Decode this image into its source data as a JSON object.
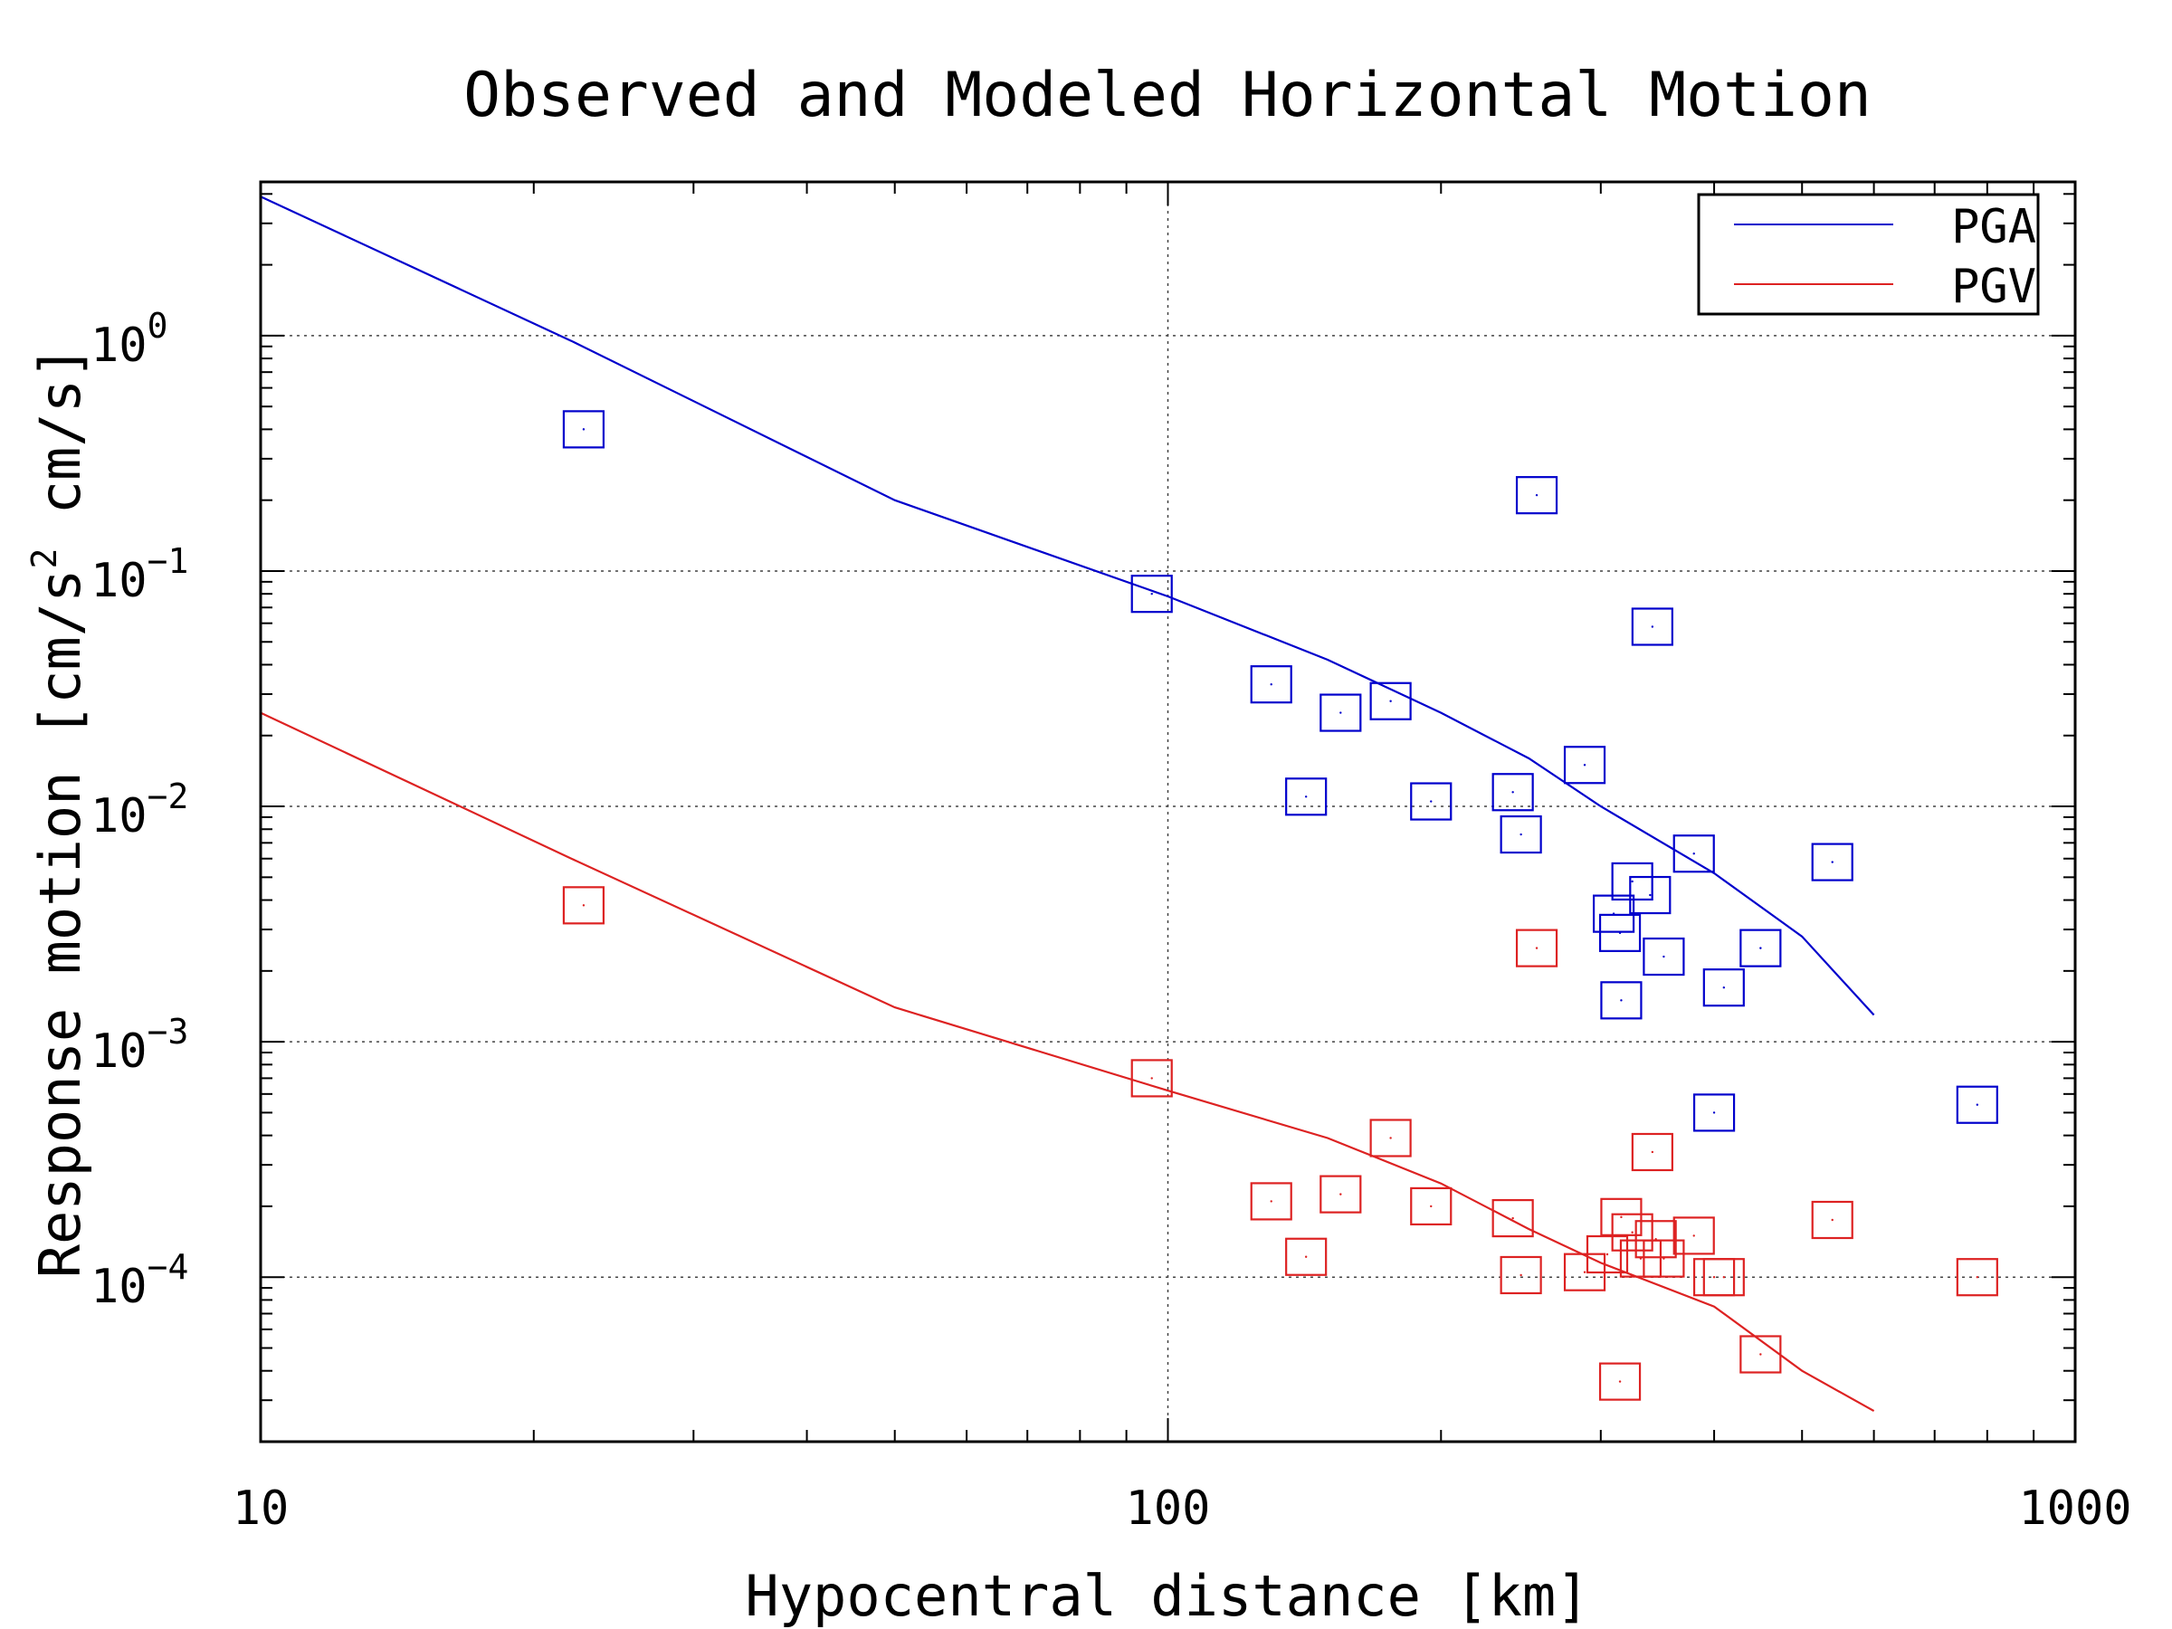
{
  "chart_data": {
    "type": "scatter",
    "title": "Observed and Modeled Horizontal Motion",
    "xlabel": "Hypocentral distance [km]",
    "ylabel": "Response motion [cm/s",
    "ylabel_sup": "2",
    "ylabel_tail": " cm/s]",
    "x_scale": "log",
    "y_scale": "log",
    "xlim": [
      10,
      1000
    ],
    "ylim": [
      2e-05,
      4.5
    ],
    "x_ticks": [
      {
        "value": 10,
        "label": "10"
      },
      {
        "value": 100,
        "label": "100"
      },
      {
        "value": 1000,
        "label": "1000"
      }
    ],
    "y_ticks": [
      {
        "value": 1,
        "base": "10",
        "exp": "0"
      },
      {
        "value": 0.1,
        "base": "10",
        "exp": "−1"
      },
      {
        "value": 0.01,
        "base": "10",
        "exp": "−2"
      },
      {
        "value": 0.001,
        "base": "10",
        "exp": "−3"
      },
      {
        "value": 0.0001,
        "base": "10",
        "exp": "−4"
      }
    ],
    "grid": true,
    "legend_position": "top-right",
    "series": [
      {
        "name": "PGA",
        "color": "#0000cc",
        "line": [
          [
            10,
            3.9
          ],
          [
            22,
            0.95
          ],
          [
            50,
            0.2
          ],
          [
            100,
            0.078
          ],
          [
            150,
            0.042
          ],
          [
            200,
            0.025
          ],
          [
            250,
            0.016
          ],
          [
            300,
            0.01
          ],
          [
            400,
            0.0052
          ],
          [
            500,
            0.0028
          ],
          [
            600,
            0.0013
          ]
        ],
        "points": [
          [
            22.7,
            0.4
          ],
          [
            96,
            0.08
          ],
          [
            130,
            0.033
          ],
          [
            142,
            0.011
          ],
          [
            155,
            0.025
          ],
          [
            176,
            0.028
          ],
          [
            195,
            0.0105
          ],
          [
            240,
            0.0115
          ],
          [
            245,
            0.0076
          ],
          [
            255,
            0.21
          ],
          [
            288,
            0.015
          ],
          [
            310,
            0.0035
          ],
          [
            315,
            0.0029
          ],
          [
            316,
            0.0015
          ],
          [
            325,
            0.0048
          ],
          [
            340,
            0.0042
          ],
          [
            342,
            0.058
          ],
          [
            352,
            0.0023
          ],
          [
            380,
            0.0063
          ],
          [
            400,
            0.0005
          ],
          [
            410,
            0.0017
          ],
          [
            450,
            0.0025
          ],
          [
            540,
            0.0058
          ],
          [
            780,
            0.00054
          ]
        ]
      },
      {
        "name": "PGV",
        "color": "#dd2222",
        "line": [
          [
            10,
            0.025
          ],
          [
            22,
            0.006
          ],
          [
            50,
            0.0014
          ],
          [
            100,
            0.00062
          ],
          [
            150,
            0.00039
          ],
          [
            200,
            0.00025
          ],
          [
            250,
            0.00016
          ],
          [
            300,
            0.000115
          ],
          [
            400,
            7.5e-05
          ],
          [
            500,
            4e-05
          ],
          [
            600,
            2.7e-05
          ]
        ],
        "points": [
          [
            22.7,
            0.0038
          ],
          [
            96,
            0.0007
          ],
          [
            130,
            0.00021
          ],
          [
            142,
            0.000122
          ],
          [
            155,
            0.000225
          ],
          [
            176,
            0.00039
          ],
          [
            195,
            0.0002
          ],
          [
            240,
            0.000178
          ],
          [
            245,
            0.000102
          ],
          [
            255,
            0.0025
          ],
          [
            288,
            0.000105
          ],
          [
            305,
            0.000125
          ],
          [
            315,
            3.6e-05
          ],
          [
            316,
            0.00018
          ],
          [
            325,
            0.000155
          ],
          [
            332,
            0.00012
          ],
          [
            342,
            0.00034
          ],
          [
            345,
            0.000145
          ],
          [
            352,
            0.00012
          ],
          [
            380,
            0.00015
          ],
          [
            400,
            0.0001
          ],
          [
            410,
            0.0001
          ],
          [
            450,
            4.7e-05
          ],
          [
            540,
            0.000175
          ],
          [
            780,
            0.0001
          ]
        ]
      }
    ]
  }
}
